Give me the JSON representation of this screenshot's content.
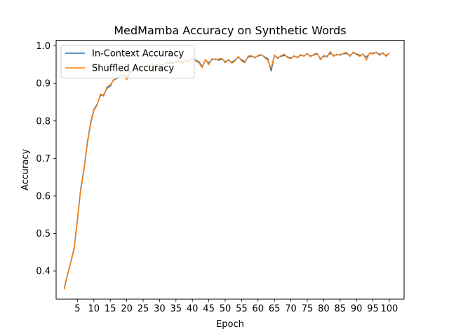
{
  "chart_data": {
    "type": "line",
    "title": "MedMamba Accuracy on Synthetic Words",
    "xlabel": "Epoch",
    "ylabel": "Accuracy",
    "xlim": [
      -1.5,
      104.5
    ],
    "ylim": [
      0.325,
      1.015
    ],
    "xticks": [
      5,
      10,
      15,
      20,
      25,
      30,
      35,
      40,
      45,
      50,
      55,
      60,
      65,
      70,
      75,
      80,
      85,
      90,
      95,
      100
    ],
    "yticks": [
      0.4,
      0.5,
      0.6,
      0.7,
      0.8,
      0.9,
      1.0
    ],
    "ytick_labels": [
      "0.4",
      "0.5",
      "0.6",
      "0.7",
      "0.8",
      "0.9",
      "1.0"
    ],
    "grid": false,
    "legend_position": "upper-left",
    "x": [
      1,
      2,
      3,
      4,
      5,
      6,
      7,
      8,
      9,
      10,
      11,
      12,
      13,
      14,
      15,
      16,
      17,
      18,
      19,
      20,
      21,
      22,
      23,
      24,
      25,
      26,
      27,
      28,
      29,
      30,
      31,
      32,
      33,
      34,
      35,
      36,
      37,
      38,
      39,
      40,
      41,
      42,
      43,
      44,
      45,
      46,
      47,
      48,
      49,
      50,
      51,
      52,
      53,
      54,
      55,
      56,
      57,
      58,
      59,
      60,
      61,
      62,
      63,
      64,
      65,
      66,
      67,
      68,
      69,
      70,
      71,
      72,
      73,
      74,
      75,
      76,
      77,
      78,
      79,
      80,
      81,
      82,
      83,
      84,
      85,
      86,
      87,
      88,
      89,
      90,
      91,
      92,
      93,
      94,
      95,
      96,
      97,
      98,
      99,
      100
    ],
    "series": [
      {
        "name": "In-Context Accuracy",
        "color": "#1f77b4",
        "values": [
          0.354,
          0.392,
          0.425,
          0.462,
          0.54,
          0.62,
          0.672,
          0.742,
          0.795,
          0.831,
          0.844,
          0.868,
          0.87,
          0.887,
          0.893,
          0.91,
          0.913,
          0.92,
          0.922,
          0.916,
          0.93,
          0.935,
          0.94,
          0.938,
          0.944,
          0.945,
          0.947,
          0.946,
          0.95,
          0.951,
          0.95,
          0.953,
          0.955,
          0.954,
          0.958,
          0.96,
          0.956,
          0.961,
          0.959,
          0.966,
          0.962,
          0.958,
          0.945,
          0.962,
          0.955,
          0.963,
          0.965,
          0.962,
          0.965,
          0.958,
          0.962,
          0.957,
          0.962,
          0.97,
          0.963,
          0.958,
          0.97,
          0.972,
          0.97,
          0.973,
          0.976,
          0.971,
          0.966,
          0.933,
          0.974,
          0.969,
          0.972,
          0.975,
          0.971,
          0.968,
          0.972,
          0.97,
          0.975,
          0.974,
          0.978,
          0.973,
          0.976,
          0.979,
          0.966,
          0.972,
          0.973,
          0.98,
          0.975,
          0.976,
          0.977,
          0.979,
          0.98,
          0.975,
          0.982,
          0.979,
          0.975,
          0.977,
          0.97,
          0.98,
          0.981,
          0.982,
          0.978,
          0.98,
          0.975,
          0.98
        ]
      },
      {
        "name": "Shuffled Accuracy",
        "color": "#ff7f0e",
        "values": [
          0.351,
          0.39,
          0.423,
          0.458,
          0.535,
          0.615,
          0.668,
          0.738,
          0.79,
          0.828,
          0.842,
          0.872,
          0.866,
          0.891,
          0.897,
          0.908,
          0.915,
          0.918,
          0.924,
          0.91,
          0.928,
          0.937,
          0.938,
          0.942,
          0.94,
          0.947,
          0.944,
          0.949,
          0.946,
          0.953,
          0.948,
          0.955,
          0.952,
          0.957,
          0.956,
          0.958,
          0.953,
          0.963,
          0.957,
          0.968,
          0.96,
          0.955,
          0.942,
          0.964,
          0.95,
          0.966,
          0.963,
          0.965,
          0.967,
          0.955,
          0.964,
          0.954,
          0.96,
          0.972,
          0.96,
          0.955,
          0.973,
          0.974,
          0.968,
          0.975,
          0.977,
          0.969,
          0.962,
          0.94,
          0.976,
          0.966,
          0.974,
          0.978,
          0.969,
          0.966,
          0.974,
          0.968,
          0.977,
          0.972,
          0.98,
          0.971,
          0.978,
          0.981,
          0.963,
          0.975,
          0.97,
          0.985,
          0.972,
          0.978,
          0.975,
          0.98,
          0.983,
          0.972,
          0.984,
          0.977,
          0.972,
          0.979,
          0.962,
          0.982,
          0.978,
          0.984,
          0.975,
          0.982,
          0.972,
          0.982
        ]
      }
    ]
  }
}
